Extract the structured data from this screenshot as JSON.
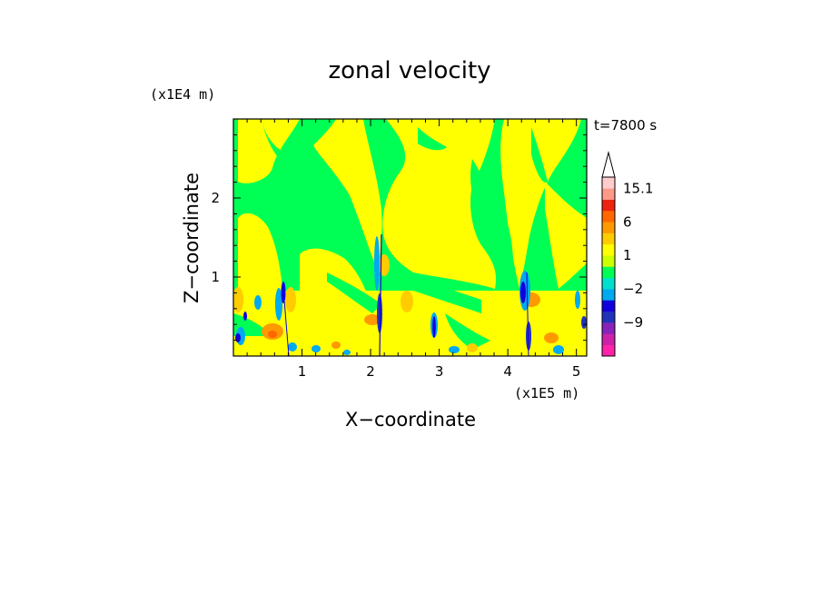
{
  "chart_data": {
    "type": "heatmap",
    "title": "zonal velocity",
    "xlabel": "X−coordinate",
    "ylabel": "Z−coordinate",
    "x_unit": "(x1E5 m)",
    "y_unit": "(x1E4 m)",
    "time_label": "t=7800 s",
    "xlim": [
      0,
      5.15
    ],
    "ylim": [
      0,
      3.0
    ],
    "x_ticks": [
      "1",
      "2",
      "3",
      "4",
      "5"
    ],
    "y_ticks": [
      "1",
      "2"
    ],
    "colorbar": {
      "labels": [
        "15.1",
        "6",
        "1",
        "−2",
        "−9"
      ],
      "extend": "max",
      "colors": [
        "#ff22aa",
        "#cc22aa",
        "#8822bb",
        "#2233bb",
        "#1100dd",
        "#00aaee",
        "#00e0cc",
        "#00ff55",
        "#ccff00",
        "#ffff00",
        "#ffcc00",
        "#ff9900",
        "#ff6600",
        "#ee2211",
        "#ff9988",
        "#ffcccc"
      ]
    }
  }
}
